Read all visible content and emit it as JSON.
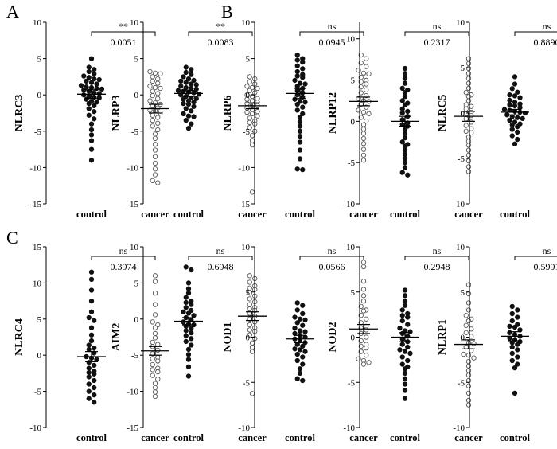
{
  "panel_letters": [
    "A",
    "B",
    "C"
  ],
  "chart_data": [
    {
      "type": "scatter",
      "title": "",
      "ylabel": "NLRC3",
      "categories": [
        "control",
        "cancer"
      ],
      "ylim": [
        -15,
        10
      ],
      "yticks": [
        -15,
        -10,
        -5,
        0,
        5,
        10
      ],
      "significance": "**",
      "pvalue": "0.0051",
      "series": [
        {
          "name": "control",
          "filled": true,
          "mean": 0.1,
          "sem": 0.6,
          "values": [
            5.0,
            3.8,
            3.2,
            2.9,
            2.6,
            2.4,
            2.1,
            1.9,
            1.7,
            1.5,
            1.3,
            1.1,
            0.9,
            0.7,
            0.5,
            0.3,
            0.2,
            0.0,
            -0.2,
            -0.4,
            -0.6,
            -0.9,
            -1.2,
            -1.5,
            -1.9,
            -2.3,
            -2.8,
            -3.3,
            -4.0,
            -4.8,
            -5.5,
            -6.3,
            -7.5,
            -9.0,
            3.5,
            1.0,
            -0.3,
            0.8,
            -1.0,
            2.2
          ]
        },
        {
          "name": "cancer",
          "filled": false,
          "mean": -1.9,
          "sem": 0.6,
          "values": [
            3.2,
            2.9,
            2.5,
            2.2,
            1.9,
            1.6,
            1.2,
            0.9,
            0.5,
            0.2,
            -0.1,
            -0.5,
            -0.8,
            -1.1,
            -1.5,
            -1.8,
            -2.1,
            -2.5,
            -2.8,
            -3.1,
            -3.5,
            -3.9,
            -4.3,
            -4.8,
            -5.4,
            -6.0,
            -6.8,
            -7.6,
            -8.5,
            -9.4,
            -10.2,
            -11.0,
            -11.8,
            -12.1,
            3.0,
            1.0,
            -1.3,
            -2.2
          ]
        }
      ]
    },
    {
      "type": "scatter",
      "title": "",
      "ylabel": "NLRP3",
      "categories": [
        "control",
        "cancer"
      ],
      "ylim": [
        -15,
        10
      ],
      "yticks": [
        -15,
        -10,
        -5,
        0,
        5,
        10
      ],
      "significance": "**",
      "pvalue": "0.0083",
      "series": [
        {
          "name": "control",
          "filled": true,
          "mean": 0.2,
          "sem": 0.4,
          "values": [
            3.8,
            3.5,
            3.1,
            2.8,
            2.5,
            2.2,
            1.9,
            1.7,
            1.5,
            1.2,
            1.0,
            0.8,
            0.6,
            0.4,
            0.3,
            0.1,
            0.0,
            -0.2,
            -0.4,
            -0.6,
            -0.8,
            -1.0,
            -1.3,
            -1.6,
            -1.9,
            -2.2,
            -2.6,
            -3.0,
            -3.5,
            -4.0,
            -4.6,
            2.0,
            0.5,
            -0.5,
            1.4,
            -1.2,
            0.9,
            -2.9
          ]
        },
        {
          "name": "cancer",
          "filled": false,
          "mean": -1.5,
          "sem": 0.4,
          "values": [
            2.5,
            2.2,
            1.8,
            1.5,
            1.2,
            0.9,
            0.6,
            0.3,
            0.0,
            -0.2,
            -0.5,
            -0.8,
            -1.0,
            -1.2,
            -1.5,
            -1.8,
            -2.0,
            -2.3,
            -2.6,
            -2.9,
            -3.2,
            -3.6,
            -4.0,
            -4.5,
            -5.0,
            -5.6,
            -6.3,
            -6.9,
            -13.4,
            1.0,
            -0.6,
            -1.4,
            -2.4,
            -3.8
          ]
        }
      ]
    },
    {
      "type": "scatter",
      "title": "",
      "ylabel": "NLRP6",
      "categories": [
        "control",
        "cancer"
      ],
      "ylim": [
        -15,
        10
      ],
      "yticks": [
        -15,
        -10,
        -5,
        0,
        5,
        10
      ],
      "significance": "ns",
      "pvalue": "0.0945",
      "series": [
        {
          "name": "control",
          "filled": true,
          "mean": 0.2,
          "sem": 0.7,
          "values": [
            5.5,
            5.0,
            4.5,
            4.0,
            3.6,
            3.2,
            2.8,
            2.4,
            2.0,
            1.6,
            1.2,
            0.9,
            0.6,
            0.3,
            0.0,
            -0.3,
            -0.6,
            -0.9,
            -1.3,
            -1.7,
            -2.1,
            -2.6,
            -3.1,
            -3.7,
            -4.3,
            -5.0,
            -5.7,
            -6.5,
            -7.6,
            -8.8,
            -10.2,
            -10.3,
            4.8,
            1.5,
            -1.0,
            2.6
          ]
        },
        {
          "name": "cancer",
          "filled": false,
          "mean": -0.9,
          "sem": 0.6,
          "values": [
            5.5,
            5.0,
            4.4,
            3.9,
            3.4,
            2.9,
            2.4,
            2.0,
            1.5,
            1.1,
            0.7,
            0.3,
            -0.1,
            -0.5,
            -0.9,
            -1.3,
            -1.7,
            -2.1,
            -2.6,
            -3.1,
            -3.6,
            -4.1,
            -4.7,
            -5.3,
            -6.0,
            -6.7,
            -7.5,
            -8.3,
            -9.0,
            3.0,
            -0.8,
            -2.4,
            1.8
          ]
        }
      ]
    },
    {
      "type": "scatter",
      "title": "",
      "ylabel": "NLRP12",
      "categories": [
        "control",
        "cancer"
      ],
      "ylim": [
        -10,
        12
      ],
      "yticks": [
        -10,
        -5,
        0,
        5,
        10
      ],
      "significance": "ns",
      "pvalue": "0.2317",
      "series": [
        {
          "name": "control",
          "filled": true,
          "mean": 0.0,
          "sem": 0.6,
          "values": [
            6.4,
            5.8,
            5.2,
            4.6,
            4.0,
            3.5,
            3.0,
            2.5,
            2.0,
            1.5,
            1.0,
            0.6,
            0.2,
            -0.2,
            -0.6,
            -1.0,
            -1.5,
            -2.0,
            -2.5,
            -3.0,
            -3.5,
            -4.0,
            -4.5,
            -5.0,
            -5.6,
            -6.2,
            -6.5,
            3.8,
            1.2,
            -0.4,
            2.2,
            -2.8
          ]
        },
        {
          "name": "cancer",
          "filled": false,
          "mean": 0.6,
          "sem": 0.6,
          "values": [
            7.6,
            7.0,
            6.4,
            5.8,
            5.2,
            4.6,
            4.0,
            3.5,
            3.0,
            2.5,
            2.0,
            1.5,
            1.1,
            0.7,
            0.3,
            -0.1,
            -0.5,
            -0.9,
            -1.4,
            -1.9,
            -2.4,
            -2.9,
            -3.5,
            -4.1,
            -4.8,
            -5.5,
            -6.1,
            3.2,
            0.9,
            -1.2,
            1.8
          ]
        }
      ]
    },
    {
      "type": "scatter",
      "title": "",
      "ylabel": "NLRC5",
      "categories": [
        "control",
        "cancer"
      ],
      "ylim": [
        -10,
        10
      ],
      "yticks": [
        -10,
        -5,
        0,
        5,
        10
      ],
      "significance": "ns",
      "pvalue": "0.8890",
      "series": [
        {
          "name": "control",
          "filled": true,
          "mean": 0.1,
          "sem": 0.3,
          "values": [
            4.0,
            3.2,
            2.7,
            2.3,
            2.0,
            1.7,
            1.4,
            1.2,
            1.0,
            0.8,
            0.6,
            0.4,
            0.2,
            0.1,
            0.0,
            -0.2,
            -0.4,
            -0.6,
            -0.8,
            -1.0,
            -1.2,
            -1.5,
            -1.8,
            -2.1,
            -2.5,
            -2.9,
            -3.4,
            1.9,
            0.3,
            -0.5,
            -1.3,
            0.9
          ]
        },
        {
          "name": "cancer",
          "filled": false,
          "mean": -0.2,
          "sem": 0.5,
          "values": [
            4.5,
            4.0,
            3.5,
            3.0,
            2.6,
            2.2,
            1.8,
            1.4,
            1.0,
            0.7,
            0.4,
            0.1,
            -0.2,
            -0.5,
            -0.8,
            -1.1,
            -1.5,
            -1.9,
            -2.3,
            -2.8,
            -3.3,
            -3.9,
            -4.5,
            -5.2,
            -5.9,
            -6.6,
            -7.2,
            2.4,
            0.2,
            -1.3
          ]
        }
      ]
    },
    {
      "type": "scatter",
      "title": "",
      "ylabel": "NLRC4",
      "categories": [
        "control",
        "cancer"
      ],
      "ylim": [
        -10,
        15
      ],
      "yticks": [
        -10,
        -5,
        0,
        5,
        10,
        15
      ],
      "significance": "ns",
      "pvalue": "0.3974",
      "series": [
        {
          "name": "control",
          "filled": true,
          "mean": -0.2,
          "sem": 0.7,
          "values": [
            11.5,
            10.5,
            9.0,
            7.5,
            6.0,
            4.8,
            3.8,
            2.8,
            2.0,
            1.4,
            0.8,
            0.3,
            -0.2,
            -0.6,
            -1.0,
            -1.4,
            -1.8,
            -2.2,
            -2.6,
            -3.0,
            -3.5,
            -4.0,
            -4.5,
            -5.0,
            -5.5,
            -6.0,
            -6.5,
            1.0,
            -0.4,
            -2.4,
            5.2
          ]
        },
        {
          "name": "cancer",
          "filled": false,
          "mean": 0.6,
          "sem": 0.6,
          "values": [
            11.0,
            10.2,
            8.6,
            7.0,
            5.6,
            4.6,
            3.8,
            3.0,
            2.4,
            1.8,
            1.2,
            0.7,
            0.2,
            -0.3,
            -0.8,
            -1.3,
            -1.8,
            -2.3,
            -2.8,
            -3.3,
            -3.9,
            -4.5,
            -5.1,
            -5.7,
            4.2,
            1.5,
            -0.5,
            -2.0
          ]
        }
      ]
    },
    {
      "type": "scatter",
      "title": "",
      "ylabel": "AIM2",
      "categories": [
        "control",
        "cancer"
      ],
      "ylim": [
        -15,
        10
      ],
      "yticks": [
        -15,
        -10,
        -5,
        0,
        5,
        10
      ],
      "significance": "ns",
      "pvalue": "0.6948",
      "series": [
        {
          "name": "control",
          "filled": true,
          "mean": -0.3,
          "sem": 0.5,
          "values": [
            7.2,
            6.8,
            5.0,
            4.2,
            3.6,
            3.0,
            2.5,
            2.0,
            1.6,
            1.2,
            0.8,
            0.5,
            0.2,
            -0.1,
            -0.4,
            -0.7,
            -1.0,
            -1.3,
            -1.6,
            -1.9,
            -2.3,
            -2.7,
            -3.1,
            -3.6,
            -4.2,
            -4.9,
            -5.6,
            -6.6,
            -7.9,
            1.0,
            -0.8,
            2.3
          ]
        },
        {
          "name": "cancer",
          "filled": false,
          "mean": 0.4,
          "sem": 0.6,
          "values": [
            6.0,
            5.6,
            5.1,
            4.6,
            4.1,
            3.6,
            3.2,
            2.8,
            2.4,
            2.0,
            1.6,
            1.2,
            0.8,
            0.4,
            0.0,
            -0.4,
            -0.8,
            -1.2,
            -1.7,
            -2.2,
            -2.7,
            -3.3,
            -3.9,
            -4.5,
            -10.3,
            4.3,
            1.4,
            -1.5
          ]
        }
      ]
    },
    {
      "type": "scatter",
      "title": "",
      "ylabel": "NOD1",
      "categories": [
        "control",
        "cancer"
      ],
      "ylim": [
        -10,
        10
      ],
      "yticks": [
        -10,
        -5,
        0,
        5,
        10
      ],
      "significance": "ns",
      "pvalue": "0.0566",
      "series": [
        {
          "name": "control",
          "filled": true,
          "mean": -0.2,
          "sem": 0.4,
          "values": [
            3.8,
            3.5,
            3.0,
            2.6,
            2.2,
            1.9,
            1.6,
            1.3,
            1.0,
            0.7,
            0.4,
            0.2,
            0.0,
            -0.2,
            -0.4,
            -0.6,
            -0.8,
            -1.0,
            -1.3,
            -1.6,
            -1.9,
            -2.2,
            -2.6,
            -3.0,
            -3.5,
            -4.0,
            -4.6,
            -4.8,
            0.6,
            -1.4,
            2.0
          ]
        },
        {
          "name": "cancer",
          "filled": false,
          "mean": 0.9,
          "sem": 0.5,
          "values": [
            8.3,
            7.8,
            6.2,
            5.3,
            4.6,
            4.0,
            3.4,
            2.9,
            2.4,
            2.0,
            1.6,
            1.2,
            0.8,
            0.4,
            0.0,
            -0.4,
            -0.8,
            -1.2,
            -1.6,
            -2.0,
            -2.4,
            -2.8,
            -3.0,
            3.0,
            1.0,
            -1.0,
            -2.6
          ]
        }
      ]
    },
    {
      "type": "scatter",
      "title": "",
      "ylabel": "NOD2",
      "categories": [
        "control",
        "cancer"
      ],
      "ylim": [
        -10,
        10
      ],
      "yticks": [
        -10,
        -5,
        0,
        5,
        10
      ],
      "significance": "ns",
      "pvalue": "0.2948",
      "series": [
        {
          "name": "control",
          "filled": true,
          "mean": 0.0,
          "sem": 0.5,
          "values": [
            5.2,
            4.6,
            4.0,
            3.5,
            3.0,
            2.6,
            2.2,
            1.8,
            1.4,
            1.0,
            0.7,
            0.4,
            0.1,
            -0.2,
            -0.5,
            -0.8,
            -1.1,
            -1.4,
            -1.8,
            -2.2,
            -2.6,
            -3.0,
            -3.5,
            -4.0,
            -4.6,
            -5.2,
            -5.9,
            -6.8,
            0.6,
            -1.6,
            2.4,
            -3.3
          ]
        },
        {
          "name": "cancer",
          "filled": false,
          "mean": -0.8,
          "sem": 0.5,
          "values": [
            5.8,
            4.8,
            3.8,
            3.0,
            2.4,
            1.8,
            1.3,
            0.9,
            0.5,
            0.1,
            -0.3,
            -0.7,
            -1.1,
            -1.5,
            -1.9,
            -2.3,
            -2.7,
            -3.2,
            -3.7,
            -4.2,
            -4.8,
            -5.4,
            -6.2,
            -7.0,
            -7.5,
            2.0,
            -0.6,
            -2.0
          ]
        }
      ]
    },
    {
      "type": "scatter",
      "title": "",
      "ylabel": "NLRP1",
      "categories": [
        "control",
        "cancer"
      ],
      "ylim": [
        -10,
        10
      ],
      "yticks": [
        -10,
        -5,
        0,
        5,
        10
      ],
      "significance": "ns",
      "pvalue": "0.5991",
      "series": [
        {
          "name": "control",
          "filled": true,
          "mean": 0.1,
          "sem": 0.5,
          "values": [
            3.4,
            3.0,
            2.6,
            2.2,
            1.8,
            1.4,
            1.1,
            0.8,
            0.5,
            0.3,
            0.1,
            -0.1,
            -0.3,
            -0.5,
            -0.8,
            -1.1,
            -1.4,
            -1.8,
            -2.2,
            -2.6,
            -3.0,
            -3.4,
            -6.2,
            1.2,
            -0.6
          ]
        },
        {
          "name": "cancer",
          "filled": false,
          "mean": -0.1,
          "sem": 0.7,
          "values": [
            4.0,
            3.7,
            3.3,
            2.9,
            2.5,
            2.1,
            1.7,
            1.3,
            0.9,
            0.5,
            0.1,
            -0.3,
            -0.7,
            -1.1,
            -1.5,
            -2.0,
            -2.5,
            -3.0,
            -3.6,
            -4.3,
            -5.0,
            -5.8,
            -6.6,
            -7.6,
            -8.6,
            2.0,
            -0.5
          ]
        }
      ]
    }
  ]
}
